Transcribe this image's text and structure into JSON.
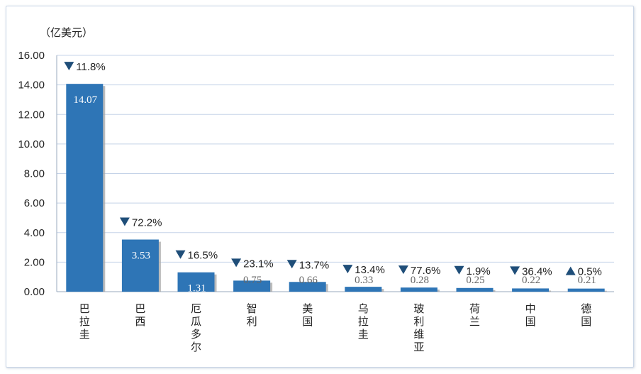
{
  "chart_data": {
    "type": "bar",
    "unit_label": "（亿美元）",
    "categories": [
      "巴拉圭",
      "巴西",
      "厄瓜多尔",
      "智利",
      "美国",
      "乌拉圭",
      "玻利维亚",
      "荷兰",
      "中国",
      "德国"
    ],
    "values": [
      14.07,
      3.53,
      1.31,
      0.75,
      0.66,
      0.33,
      0.28,
      0.25,
      0.22,
      0.21
    ],
    "value_labels": [
      "14.07",
      "3.53",
      "1.31",
      "0.75",
      "0.66",
      "0.33",
      "0.28",
      "0.25",
      "0.22",
      "0.21"
    ],
    "changes": [
      {
        "direction": "down",
        "text": "11.8%"
      },
      {
        "direction": "down",
        "text": "72.2%"
      },
      {
        "direction": "down",
        "text": "16.5%"
      },
      {
        "direction": "down",
        "text": "23.1%"
      },
      {
        "direction": "down",
        "text": "13.7%"
      },
      {
        "direction": "down",
        "text": "13.4%"
      },
      {
        "direction": "down",
        "text": "77.6%"
      },
      {
        "direction": "down",
        "text": "1.9%"
      },
      {
        "direction": "down",
        "text": "36.4%"
      },
      {
        "direction": "up",
        "text": "0.5%"
      }
    ],
    "y_ticks": [
      "0.00",
      "2.00",
      "4.00",
      "6.00",
      "8.00",
      "10.00",
      "12.00",
      "14.00",
      "16.00"
    ],
    "ylim": [
      0,
      16
    ],
    "grid": true,
    "colors": {
      "bar": "#2e75b6",
      "bar_shadow": "#a6a6a6",
      "grid": "#c5d3e8",
      "marker": "#1f4e79",
      "label_inside": "#ffffff",
      "label_outside": "#666666"
    }
  }
}
